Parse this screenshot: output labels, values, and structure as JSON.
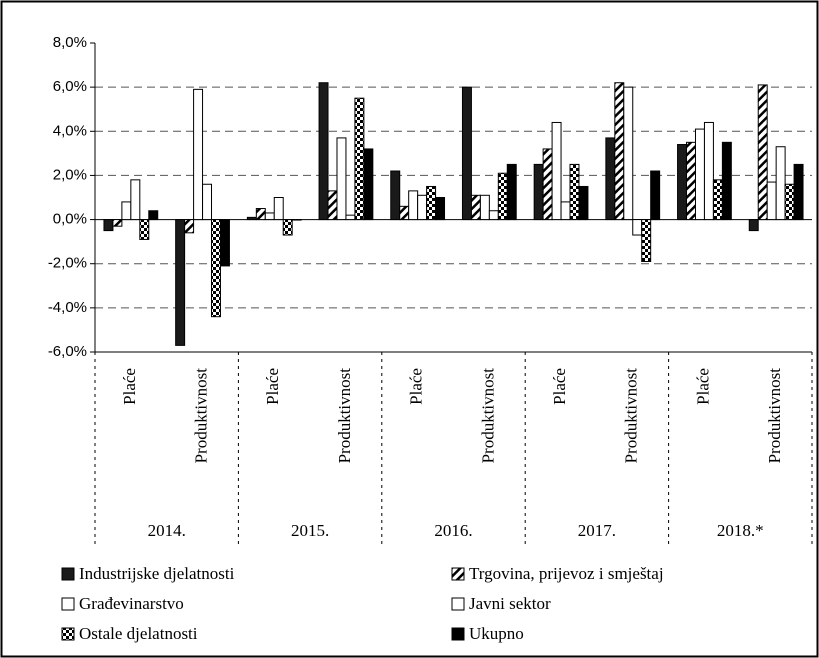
{
  "chart_data": {
    "type": "bar",
    "categories": [
      "Plaće",
      "Produktivnost",
      "Plaće",
      "Produktivnost",
      "Plaće",
      "Produktivnost",
      "Plaće",
      "Produktivnost",
      "Plaće",
      "Produktivnost"
    ],
    "groups": [
      "2014.",
      "2015.",
      "2016.",
      "2017.",
      "2018.*"
    ],
    "series": [
      {
        "name": "Industrijske djelatnosti",
        "color": "#1a1a1a",
        "pattern": "none",
        "values": [
          -0.5,
          -5.7,
          0.1,
          6.2,
          2.2,
          6.0,
          2.5,
          3.7,
          3.4,
          -0.5
        ]
      },
      {
        "name": "Trgovina, prijevoz i smještaj",
        "color": "#ffffff",
        "pattern": "diagonal",
        "values": [
          -0.3,
          -0.6,
          0.5,
          1.3,
          0.6,
          1.1,
          3.2,
          6.2,
          3.5,
          6.1
        ]
      },
      {
        "name": "Građevinarstvo",
        "color": "#ffffff",
        "pattern": "none",
        "values": [
          0.8,
          5.9,
          0.3,
          3.7,
          1.3,
          1.1,
          4.4,
          6.0,
          4.1,
          1.7
        ]
      },
      {
        "name": "Javni sektor",
        "color": "#ffffff",
        "pattern": "none",
        "values": [
          1.8,
          1.6,
          1.0,
          0.2,
          1.1,
          0.4,
          0.8,
          -0.7,
          4.4,
          3.3
        ]
      },
      {
        "name": "Ostale djelatnosti",
        "color": "#ffffff",
        "pattern": "checker",
        "values": [
          -0.9,
          -4.4,
          -0.7,
          5.5,
          1.5,
          2.1,
          2.5,
          -1.9,
          1.8,
          1.6
        ]
      },
      {
        "name": "Ukupno",
        "color": "#000000",
        "pattern": "none",
        "values": [
          0.4,
          -2.1,
          0.0,
          3.2,
          1.0,
          2.5,
          1.5,
          2.2,
          3.5,
          2.5
        ]
      }
    ],
    "ylim": [
      -6,
      8
    ],
    "yticks": [
      {
        "value": -6,
        "label": "-6,0%"
      },
      {
        "value": -4,
        "label": "-4,0%"
      },
      {
        "value": -2,
        "label": "-2,0%"
      },
      {
        "value": 0,
        "label": "0,0%"
      },
      {
        "value": 2,
        "label": "2,0%"
      },
      {
        "value": 4,
        "label": "4,0%"
      },
      {
        "value": 6,
        "label": "6,0%"
      },
      {
        "value": 8,
        "label": "8,0%"
      }
    ],
    "grid": true
  }
}
